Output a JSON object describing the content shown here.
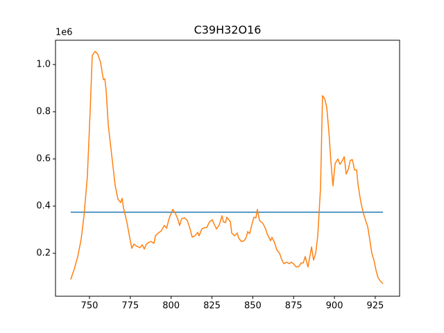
{
  "chart_data": {
    "type": "line",
    "title": "C39H32O16",
    "y_offset_label": "1e6",
    "xlim": [
      729.2,
      939.9
    ],
    "ylim": [
      0.018,
      1.103
    ],
    "xticks": [
      750,
      775,
      800,
      825,
      850,
      875,
      900,
      925
    ],
    "yticks": [
      0.2,
      0.4,
      0.6,
      0.8,
      {
        "value": 1,
        "label": "1.0"
      }
    ],
    "series": [
      {
        "color": "#1f77b4",
        "x": [
          738.5,
          929.7
        ],
        "values": [
          0.374,
          0.374
        ]
      },
      {
        "color": "#ff7f0e",
        "x": [
          738.5,
          740.7,
          742.8,
          744.9,
          746.6,
          748.7,
          750.4,
          751.7,
          753.4,
          755.1,
          756.8,
          758.5,
          759.4,
          760.2,
          761.5,
          763.2,
          764.9,
          765.7,
          767.4,
          769.1,
          770.0,
          770.8,
          772.9,
          774.2,
          775.9,
          777.2,
          778.9,
          781.0,
          782.3,
          783.6,
          784.8,
          786.5,
          787.8,
          789.5,
          790.4,
          792.1,
          793.8,
          795.9,
          797.2,
          798.9,
          801.0,
          802.3,
          804.0,
          805.2,
          806.5,
          808.2,
          809.9,
          811.6,
          812.9,
          814.6,
          816.3,
          817.1,
          818.8,
          820.5,
          821.8,
          823.5,
          825.2,
          826.5,
          827.8,
          829.5,
          831.2,
          832.0,
          833.3,
          834.1,
          836.3,
          837.1,
          838.8,
          840.5,
          841.3,
          843.0,
          844.7,
          846.0,
          846.9,
          848.1,
          849.4,
          850.7,
          851.9,
          852.8,
          854.1,
          856.2,
          857.9,
          858.8,
          860.9,
          861.7,
          863.4,
          864.7,
          866.4,
          867.7,
          869.0,
          870.7,
          872.4,
          873.6,
          874.9,
          876.6,
          878.3,
          879.6,
          880.9,
          882.1,
          883.8,
          886.0,
          887.2,
          888.5,
          889.8,
          891.5,
          892.7,
          894.0,
          895.3,
          896.6,
          897.9,
          899.1,
          900.4,
          902.1,
          903.4,
          904.7,
          906.0,
          907.2,
          908.5,
          909.7,
          911.0,
          912.3,
          913.6,
          914.4,
          915.7,
          916.5,
          917.8,
          919.1,
          920.4,
          921.6,
          922.9,
          924.2,
          925.5,
          926.7,
          928.0,
          929.7
        ],
        "values": [
          0.089,
          0.133,
          0.186,
          0.259,
          0.356,
          0.524,
          0.8,
          1.038,
          1.056,
          1.044,
          1.009,
          0.936,
          0.939,
          0.891,
          0.744,
          0.641,
          0.539,
          0.489,
          0.43,
          0.415,
          0.433,
          0.394,
          0.333,
          0.283,
          0.221,
          0.239,
          0.23,
          0.224,
          0.236,
          0.218,
          0.239,
          0.247,
          0.25,
          0.242,
          0.274,
          0.286,
          0.294,
          0.318,
          0.306,
          0.35,
          0.386,
          0.374,
          0.347,
          0.318,
          0.347,
          0.35,
          0.339,
          0.303,
          0.268,
          0.274,
          0.289,
          0.274,
          0.303,
          0.309,
          0.309,
          0.333,
          0.342,
          0.321,
          0.303,
          0.321,
          0.359,
          0.333,
          0.33,
          0.353,
          0.333,
          0.286,
          0.274,
          0.286,
          0.265,
          0.25,
          0.253,
          0.268,
          0.292,
          0.283,
          0.321,
          0.353,
          0.35,
          0.386,
          0.339,
          0.327,
          0.303,
          0.283,
          0.253,
          0.268,
          0.244,
          0.215,
          0.2,
          0.174,
          0.156,
          0.162,
          0.156,
          0.162,
          0.156,
          0.142,
          0.144,
          0.159,
          0.159,
          0.186,
          0.142,
          0.227,
          0.171,
          0.2,
          0.274,
          0.48,
          0.868,
          0.856,
          0.818,
          0.715,
          0.583,
          0.486,
          0.58,
          0.6,
          0.577,
          0.591,
          0.609,
          0.536,
          0.556,
          0.594,
          0.597,
          0.553,
          0.553,
          0.494,
          0.436,
          0.406,
          0.368,
          0.339,
          0.312,
          0.259,
          0.2,
          0.171,
          0.127,
          0.097,
          0.083,
          0.071
        ]
      }
    ]
  }
}
